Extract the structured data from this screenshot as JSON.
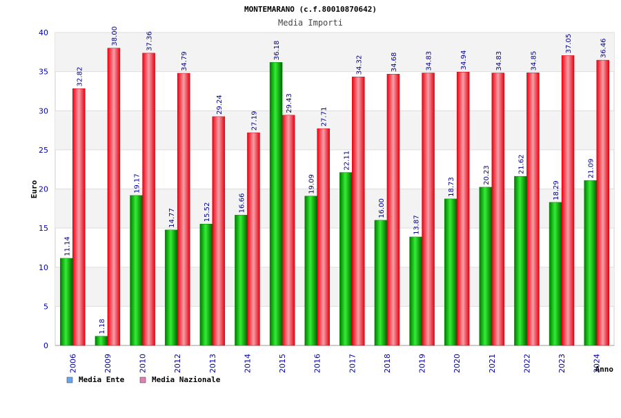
{
  "chart_data": {
    "type": "bar",
    "title": "MONTEMARANO (c.f.80010870642)",
    "subtitle": "Media Importi",
    "xlabel": "Anno",
    "ylabel": "Euro",
    "ylim": [
      0,
      40
    ],
    "yticks": [
      0,
      5,
      10,
      15,
      20,
      25,
      30,
      35,
      40
    ],
    "categories": [
      "2006",
      "2009",
      "2010",
      "2012",
      "2013",
      "2014",
      "2015",
      "2016",
      "2017",
      "2018",
      "2019",
      "2020",
      "2021",
      "2022",
      "2023",
      "2024"
    ],
    "series": [
      {
        "name": "Media Ente",
        "color": "#00cc00",
        "legend_color": "#6aa6f0",
        "values": [
          11.14,
          1.18,
          19.17,
          14.77,
          15.52,
          16.66,
          36.18,
          19.09,
          22.11,
          16.0,
          13.87,
          18.73,
          20.23,
          21.62,
          18.29,
          21.09
        ],
        "labels": [
          "11.14",
          "1.18",
          "19.17",
          "14.77",
          "15.52",
          "16.66",
          "36.18",
          "19.09",
          "22.11",
          "16.00",
          "13.87",
          "18.73",
          "20.23",
          "21.62",
          "18.29",
          "21.09"
        ]
      },
      {
        "name": "Media Nazionale",
        "color": "#ee1122",
        "legend_color": "#e080b0",
        "values": [
          32.82,
          38.0,
          37.36,
          34.79,
          29.24,
          27.19,
          29.43,
          27.71,
          34.32,
          34.68,
          34.83,
          34.94,
          34.83,
          34.85,
          37.05,
          36.46
        ],
        "labels": [
          "32.82",
          "38.00",
          "37.36",
          "34.79",
          "29.24",
          "27.19",
          "29.43",
          "27.71",
          "34.32",
          "34.68",
          "34.83",
          "34.94",
          "34.83",
          "34.85",
          "37.05",
          "36.46"
        ]
      }
    ],
    "grid": true,
    "legend_position": "bottom-left"
  }
}
